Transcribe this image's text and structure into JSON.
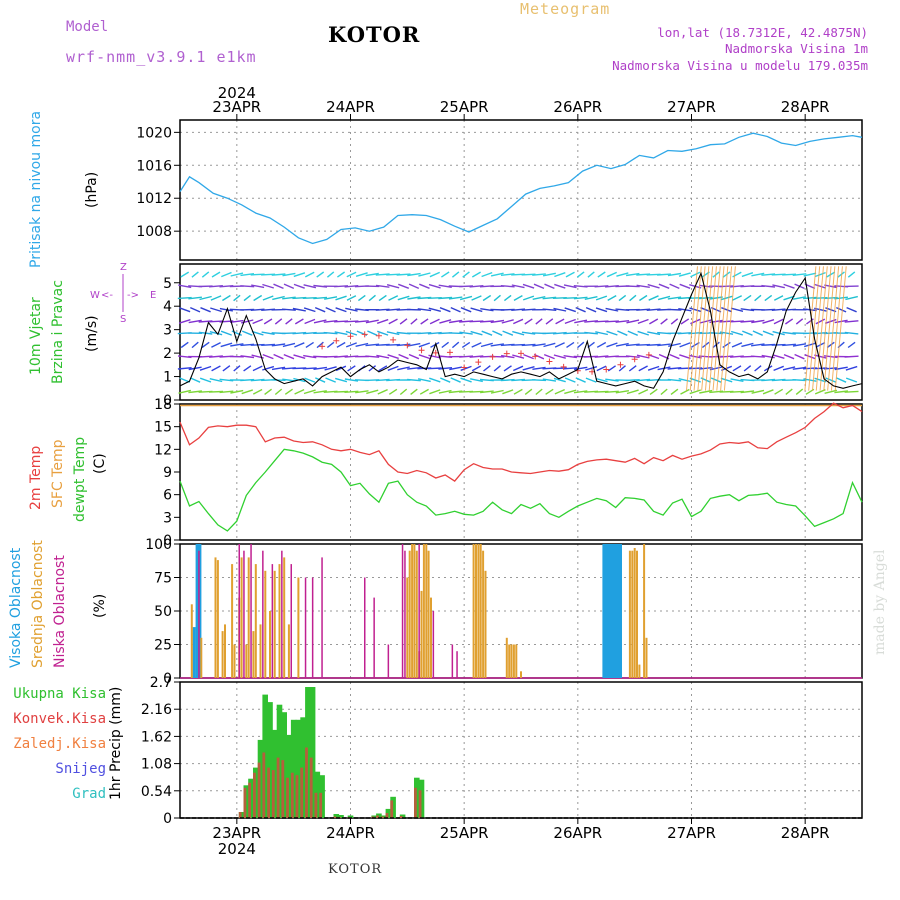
{
  "header": {
    "model_label": "Model",
    "model_name": "wrf-nmm_v3.9.1 e1km",
    "station": "KOTOR",
    "meteogram_label": "Meteogram",
    "lonlat": "lon,lat (18.7312E, 42.4875N)",
    "elevation": "Nadmorska Visina 1m",
    "model_elevation": "Nadmorska Visina u modelu 179.035m"
  },
  "footer": {
    "station": "KOTOR",
    "watermark": "made by Angel"
  },
  "time_axis": {
    "year": "2024",
    "days": [
      "23APR",
      "24APR",
      "25APR",
      "26APR",
      "27APR",
      "28APR"
    ],
    "day_start_hours": [
      12,
      36,
      60,
      84,
      108,
      132
    ],
    "range_hours": [
      0,
      144
    ]
  },
  "colors": {
    "pressure": "#30a8e8",
    "temp2m": "#e84040",
    "sfc_temp": "#e8a040",
    "dewpt": "#30d030",
    "high_cloud": "#20a0e0",
    "mid_cloud": "#e0a030",
    "low_cloud": "#c02090",
    "total_precip": "#30c030",
    "conv_precip": "#e04040",
    "frozen": "#f08040",
    "snow": "#5050e0",
    "graupel": "#30c0c0",
    "wind_label": "#30c030",
    "direction_label": "#b040c8"
  },
  "panels": {
    "pressure": {
      "label": "Pritisak na nivou mora",
      "unit": "(hPa)"
    },
    "wind": {
      "label1": "10m Vjetar",
      "label2": "Brzina i Pravac",
      "unit": "(m/s)",
      "dirs": {
        "n": "Z",
        "w": "W",
        "e": "E",
        "s": "S",
        "arrow_left": "<-",
        "arrow_right": "->"
      }
    },
    "temp": {
      "label1": "2m Temp",
      "label2": "SFC Temp",
      "label3": "dewpt Temp",
      "unit": "(C)"
    },
    "cloud": {
      "label1": "Visoka Oblacnost",
      "label2": "Srednja Oblacnost",
      "label3": "Niska Oblacnost",
      "unit": "(%)"
    },
    "precip": {
      "axis_label": "1hr Precip (mm)",
      "legend": [
        "Ukupna Kisa",
        "Konvek.Kisa",
        "Zaledj.Kisa",
        "Snijeg",
        "Grad"
      ]
    }
  },
  "chart_data": [
    {
      "type": "line",
      "title": "Pritisak na nivou mora",
      "ylabel": "(hPa)",
      "ylim": [
        1004.5,
        1021.5
      ],
      "yticks": [
        1008,
        1012,
        1016,
        1020
      ],
      "x": [
        0,
        2,
        4,
        7,
        10,
        13,
        16,
        19,
        22,
        25,
        28,
        31,
        34,
        37,
        40,
        43,
        46,
        49,
        52,
        55,
        58,
        61,
        64,
        67,
        70,
        73,
        76,
        79,
        82,
        85,
        88,
        91,
        94,
        97,
        100,
        103,
        106,
        109,
        112,
        115,
        118,
        121,
        124,
        127,
        130,
        133,
        136,
        139,
        142,
        144
      ],
      "series": [
        {
          "name": "",
          "values": [
            1012.8,
            1014.6,
            1013.9,
            1012.6,
            1012.0,
            1011.2,
            1010.2,
            1009.6,
            1008.5,
            1007.2,
            1006.5,
            1007.0,
            1008.2,
            1008.4,
            1008.0,
            1008.5,
            1009.9,
            1010.0,
            1009.9,
            1009.4,
            1008.6,
            1007.9,
            1008.7,
            1009.5,
            1011.0,
            1012.5,
            1013.2,
            1013.5,
            1013.9,
            1015.3,
            1016.0,
            1015.6,
            1016.1,
            1017.2,
            1016.9,
            1017.8,
            1017.7,
            1018.0,
            1018.5,
            1018.6,
            1019.4,
            1019.9,
            1019.5,
            1018.7,
            1018.4,
            1018.9,
            1019.2,
            1019.4,
            1019.6,
            1019.4
          ]
        }
      ]
    },
    {
      "type": "line",
      "title": "10m Vjetar Brzina i Pravac",
      "ylabel": "(m/s)",
      "ylim": [
        0,
        5.8
      ],
      "yticks": [
        0,
        1,
        2,
        3,
        4,
        5
      ],
      "x": [
        0,
        2,
        4,
        6,
        8,
        10,
        12,
        14,
        16,
        18,
        20,
        22,
        24,
        26,
        28,
        30,
        32,
        34,
        36,
        38,
        40,
        42,
        44,
        46,
        48,
        50,
        52,
        54,
        56,
        58,
        60,
        62,
        64,
        66,
        68,
        70,
        72,
        74,
        76,
        78,
        80,
        82,
        84,
        86,
        88,
        90,
        92,
        94,
        96,
        98,
        100,
        102,
        104,
        106,
        108,
        110,
        112,
        114,
        116,
        118,
        120,
        122,
        124,
        126,
        128,
        130,
        132,
        134,
        136,
        138,
        140,
        142,
        144
      ],
      "series": [
        {
          "name": "",
          "values": [
            0.6,
            0.8,
            1.8,
            3.3,
            2.8,
            3.9,
            2.5,
            3.6,
            2.6,
            1.3,
            0.9,
            0.7,
            0.8,
            0.9,
            0.6,
            1.0,
            1.2,
            1.4,
            1.0,
            1.3,
            1.5,
            1.2,
            1.4,
            1.7,
            1.6,
            1.5,
            1.3,
            2.4,
            1.0,
            1.1,
            1.0,
            1.2,
            1.1,
            1.0,
            0.9,
            1.1,
            1.2,
            1.1,
            1.0,
            1.2,
            0.9,
            1.1,
            1.3,
            2.5,
            0.8,
            0.7,
            0.6,
            0.7,
            0.8,
            0.6,
            0.5,
            1.2,
            2.5,
            3.5,
            4.5,
            5.4,
            3.8,
            1.5,
            1.2,
            1.0,
            1.1,
            0.9,
            1.2,
            2.4,
            3.8,
            4.6,
            5.2,
            2.6,
            0.9,
            0.6,
            0.5,
            0.6,
            0.7
          ]
        }
      ]
    },
    {
      "type": "line",
      "title": "2m Temp / SFC Temp / dewpt Temp",
      "ylabel": "(C)",
      "ylim": [
        0,
        18
      ],
      "yticks": [
        0,
        3,
        6,
        9,
        12,
        15,
        18
      ],
      "x": [
        0,
        2,
        4,
        6,
        8,
        10,
        12,
        14,
        16,
        18,
        20,
        22,
        24,
        26,
        28,
        30,
        32,
        34,
        36,
        38,
        40,
        42,
        44,
        46,
        48,
        50,
        52,
        54,
        56,
        58,
        60,
        62,
        64,
        66,
        68,
        70,
        72,
        74,
        76,
        78,
        80,
        82,
        84,
        86,
        88,
        90,
        92,
        94,
        96,
        98,
        100,
        102,
        104,
        106,
        108,
        110,
        112,
        114,
        116,
        118,
        120,
        122,
        124,
        126,
        128,
        130,
        132,
        134,
        136,
        138,
        140,
        142,
        144
      ],
      "series": [
        {
          "name": "2m Temp",
          "values": [
            15.6,
            12.6,
            13.5,
            14.9,
            15.1,
            15.0,
            15.2,
            15.2,
            15.0,
            13.0,
            13.5,
            13.6,
            13.1,
            12.9,
            13.0,
            12.6,
            12.0,
            11.8,
            12.0,
            11.6,
            11.3,
            11.8,
            10.0,
            9.0,
            8.8,
            9.2,
            8.9,
            8.2,
            8.6,
            7.8,
            9.3,
            10.1,
            9.6,
            9.4,
            9.4,
            9.0,
            8.9,
            8.8,
            9.0,
            9.2,
            9.1,
            9.3,
            10.0,
            10.4,
            10.6,
            10.7,
            10.5,
            10.3,
            10.8,
            10.1,
            10.9,
            10.5,
            11.2,
            10.7,
            11.1,
            11.4,
            11.9,
            12.7,
            12.9,
            12.8,
            13.0,
            12.2,
            12.1,
            13.0,
            13.6,
            14.2,
            14.9,
            16.1,
            17.0,
            18.1,
            17.5,
            17.8,
            17.0
          ]
        },
        {
          "name": "SFC Temp",
          "values": [
            17.8,
            17.8,
            17.8,
            17.8,
            17.8,
            17.8,
            17.8,
            17.8,
            17.8,
            17.8,
            17.8,
            17.8,
            17.8,
            17.8,
            17.8,
            17.8,
            17.8,
            17.8,
            17.8,
            17.8,
            17.8,
            17.8,
            17.8,
            17.8,
            17.8,
            17.8,
            17.8,
            17.8,
            17.8,
            17.8,
            17.8,
            17.8,
            17.8,
            17.8,
            17.8,
            17.8,
            17.8,
            17.8,
            17.8,
            17.8,
            17.8,
            17.8,
            17.8,
            17.8,
            17.8,
            17.8,
            17.8,
            17.8,
            17.8,
            17.8,
            17.8,
            17.8,
            17.8,
            17.8,
            17.8,
            17.8,
            17.8,
            17.8,
            17.8,
            17.8,
            17.8,
            17.8,
            17.8,
            17.8,
            17.8,
            17.8,
            17.8,
            17.8,
            17.8,
            17.8,
            17.8,
            17.8,
            17.8
          ]
        },
        {
          "name": "dewpt Temp",
          "values": [
            7.8,
            4.5,
            5.1,
            3.5,
            2.0,
            1.2,
            2.5,
            5.9,
            7.6,
            9.0,
            10.5,
            12.0,
            11.8,
            11.5,
            11.0,
            10.3,
            10.0,
            9.0,
            7.2,
            7.5,
            6.1,
            5.0,
            7.5,
            7.8,
            6.0,
            5.0,
            4.5,
            3.3,
            3.5,
            3.8,
            3.4,
            3.3,
            3.8,
            5.0,
            4.0,
            3.5,
            4.7,
            4.2,
            4.8,
            3.5,
            3.0,
            3.8,
            4.5,
            5.0,
            5.5,
            5.2,
            4.3,
            5.6,
            5.5,
            5.3,
            3.8,
            3.3,
            4.9,
            5.4,
            3.1,
            3.8,
            5.5,
            5.8,
            6.0,
            5.2,
            5.9,
            6.0,
            6.2,
            5.0,
            4.7,
            4.5,
            3.2,
            1.8,
            2.3,
            2.8,
            3.5,
            7.6,
            5.0
          ]
        }
      ]
    },
    {
      "type": "bar",
      "title": "Visoka / Srednja / Niska Oblacnost",
      "ylabel": "(%)",
      "ylim": [
        0,
        100
      ],
      "yticks": [
        0,
        25,
        50,
        75,
        100
      ],
      "series": [
        {
          "name": "Visoka Oblacnost",
          "x": [
            3,
            3.6,
            4.2,
            89.5,
            90,
            90.5,
            91,
            91.5,
            92,
            92.5,
            93
          ],
          "values": [
            38,
            100,
            100,
            100,
            100,
            100,
            100,
            100,
            100,
            100,
            100
          ]
        },
        {
          "name": "Srednja Oblacnost",
          "x": [
            2.5,
            4.5,
            7.5,
            8,
            9,
            9.5,
            11,
            11.5,
            12.5,
            13,
            14,
            14.5,
            15.5,
            16,
            17,
            18,
            19,
            20,
            21,
            22,
            23,
            25,
            48,
            48.5,
            49,
            49.5,
            50,
            50.5,
            51,
            51.5,
            52,
            52.5,
            53,
            62,
            62.5,
            63,
            63.5,
            64,
            64.5,
            69,
            69.5,
            70,
            70.5,
            71,
            72,
            72.5,
            95,
            95.5,
            96,
            96.5,
            97,
            98,
            98.5
          ],
          "values": [
            55,
            30,
            90,
            88,
            35,
            40,
            85,
            25,
            60,
            90,
            25,
            90,
            35,
            85,
            40,
            80,
            50,
            80,
            85,
            90,
            40,
            75,
            75,
            95,
            100,
            100,
            95,
            20,
            65,
            100,
            100,
            95,
            60,
            100,
            100,
            100,
            100,
            95,
            80,
            30,
            25,
            25,
            25,
            25,
            5,
            0,
            95,
            95,
            97,
            95,
            10,
            100,
            30
          ]
        },
        {
          "name": "Niska Oblacnost",
          "x": [
            4,
            12.5,
            13.5,
            15,
            17.5,
            19.5,
            21.5,
            23.5,
            26.5,
            28,
            30,
            39,
            41,
            44,
            47,
            47.5,
            50.5,
            53.5,
            57.5,
            58.5
          ],
          "values": [
            95,
            100,
            95,
            100,
            95,
            85,
            95,
            85,
            75,
            75,
            90,
            75,
            60,
            25,
            100,
            95,
            100,
            50,
            25,
            20
          ]
        }
      ]
    },
    {
      "type": "bar",
      "title": "1hr Precip",
      "ylabel": "1hr Precip (mm)",
      "ylim": [
        0,
        2.7
      ],
      "yticks": [
        0,
        0.54,
        1.08,
        1.62,
        2.16,
        2.7
      ],
      "x": [
        13,
        14,
        15,
        16,
        17,
        18,
        19,
        20,
        21,
        22,
        23,
        24,
        25,
        26,
        27,
        28,
        29,
        30,
        33,
        34,
        36,
        41,
        42,
        43,
        44,
        45,
        47,
        50,
        51
      ],
      "series": [
        {
          "name": "Ukupna Kisa",
          "values": [
            0.12,
            0.65,
            0.78,
            1.0,
            1.55,
            2.45,
            2.3,
            1.75,
            2.25,
            2.1,
            1.65,
            1.95,
            1.95,
            2.0,
            2.6,
            2.6,
            0.92,
            0.85,
            0.08,
            0.06,
            0.05,
            0.05,
            0.09,
            0.05,
            0.18,
            0.42,
            0.07,
            0.8,
            0.76
          ]
        },
        {
          "name": "Konvek.Kisa",
          "values": [
            0.12,
            0.6,
            0.7,
            0.9,
            1.1,
            1.3,
            1.0,
            0.95,
            1.2,
            1.15,
            0.8,
            0.9,
            0.85,
            1.0,
            1.4,
            1.2,
            0.5,
            0.5,
            0.03,
            0.02,
            0.02,
            0.03,
            0.05,
            0.03,
            0.1,
            0.35,
            0.04,
            0.6,
            0.55
          ]
        },
        {
          "name": "Zaledj.Kisa",
          "values": [
            0,
            0,
            0,
            0,
            0,
            0,
            0,
            0,
            0,
            0,
            0,
            0,
            0,
            0,
            0,
            0,
            0,
            0,
            0,
            0,
            0,
            0,
            0,
            0,
            0,
            0,
            0,
            0,
            0
          ]
        },
        {
          "name": "Snijeg",
          "values": [
            0,
            0,
            0,
            0,
            0,
            0,
            0,
            0,
            0,
            0,
            0,
            0,
            0,
            0,
            0,
            0,
            0,
            0,
            0,
            0,
            0,
            0,
            0,
            0,
            0,
            0,
            0,
            0,
            0
          ]
        },
        {
          "name": "Grad",
          "values": [
            0,
            0,
            0,
            0,
            0,
            0,
            0,
            0,
            0,
            0,
            0,
            0,
            0,
            0,
            0,
            0,
            0,
            0,
            0,
            0,
            0,
            0,
            0,
            0,
            0,
            0,
            0,
            0,
            0
          ]
        }
      ]
    }
  ]
}
